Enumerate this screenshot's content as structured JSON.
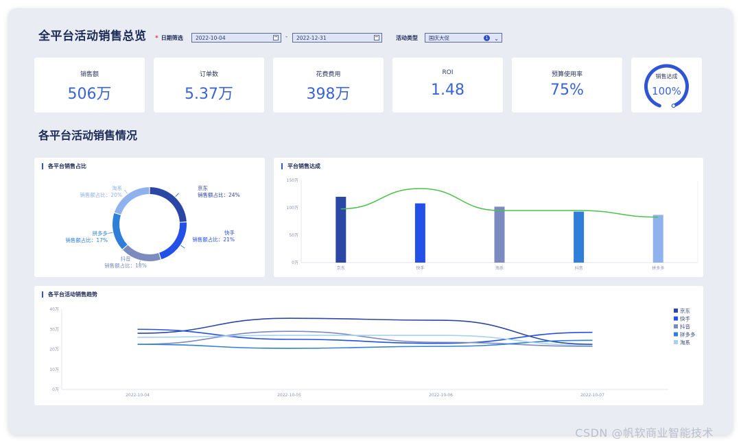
{
  "header": {
    "title": "全平台活动销售总览",
    "date_filter_label": "日期筛选",
    "date_start": "2022-10-04",
    "date_end": "2022-12-31",
    "date_separator": "-",
    "activity_type_label": "活动类型",
    "activity_type_value": "国庆大促",
    "activity_type_count": "1"
  },
  "kpis": [
    {
      "label": "销售额",
      "value": "506万"
    },
    {
      "label": "订单数",
      "value": "5.37万"
    },
    {
      "label": "花费费用",
      "value": "398万"
    },
    {
      "label": "ROI",
      "value": "1.48"
    },
    {
      "label": "预算使用率",
      "value": "75%"
    }
  ],
  "gauge": {
    "label": "销售达成",
    "value": "100%",
    "fraction": 1.0
  },
  "section_title": "各平台活动销售情况",
  "panels": {
    "pie_title": "各平台销售占比",
    "bar_title": "平台销售达成",
    "trend_title": "各平台活动销售趋势"
  },
  "colors": {
    "jd": "#2b46a5",
    "kuaishou": "#2350e6",
    "taoxi": "#7b8bc0",
    "douyin": "#2f7fd8",
    "pdd": "#8fb2ee",
    "line_green": "#4cc04a",
    "trend_light": "#a7d1ee"
  },
  "watermark": "CSDN @帆软商业智能技术",
  "chart_data": [
    {
      "type": "pie",
      "title": "各平台销售占比",
      "slices": [
        {
          "name": "京东",
          "label": "销售额占比：24%",
          "value": 24,
          "color": "#2b46a5"
        },
        {
          "name": "快手",
          "label": "销售额占比：21%",
          "value": 21,
          "color": "#2350e6"
        },
        {
          "name": "抖音",
          "label": "销售额占比：18%",
          "value": 18,
          "color": "#7b8bc0"
        },
        {
          "name": "拼多多",
          "label": "销售额占比：17%",
          "value": 17,
          "color": "#2f7fd8"
        },
        {
          "name": "淘系",
          "label": "销售额占比：20%",
          "value": 20,
          "color": "#8fb2ee"
        }
      ]
    },
    {
      "type": "bar",
      "title": "平台销售达成",
      "categories": [
        "京东",
        "快手",
        "淘系",
        "抖音",
        "拼多多"
      ],
      "values": [
        120,
        108,
        102,
        93,
        87
      ],
      "bar_colors": [
        "#2b46a5",
        "#2350e6",
        "#7b8bc0",
        "#2f7fd8",
        "#8fb2ee"
      ],
      "line_values": [
        98,
        135,
        95,
        95,
        83
      ],
      "line_color": "#4cc04a",
      "yticks": [
        "0万",
        "50万",
        "100万",
        "150万"
      ],
      "ylim": [
        0,
        150
      ]
    },
    {
      "type": "line",
      "title": "各平台活动销售趋势",
      "x": [
        "2022-10-04",
        "2022-10-05",
        "2022-10-06",
        "2022-10-07"
      ],
      "yticks": [
        "0万",
        "10万",
        "20万",
        "30万",
        "40万"
      ],
      "ylim": [
        0,
        40
      ],
      "series": [
        {
          "name": "京东",
          "values": [
            28,
            35.5,
            34.5,
            22.5
          ],
          "color": "#2b46a5"
        },
        {
          "name": "快手",
          "values": [
            30,
            25,
            23,
            28.5
          ],
          "color": "#2350e6"
        },
        {
          "name": "抖音",
          "values": [
            22.5,
            29,
            23.5,
            21.5
          ],
          "color": "#7b8bc0"
        },
        {
          "name": "拼多多",
          "values": [
            22.5,
            20.5,
            21.5,
            24.5
          ],
          "color": "#2f7fd8"
        },
        {
          "name": "淘系",
          "values": [
            26,
            27,
            27,
            22
          ],
          "color": "#a7d1ee"
        }
      ]
    }
  ]
}
